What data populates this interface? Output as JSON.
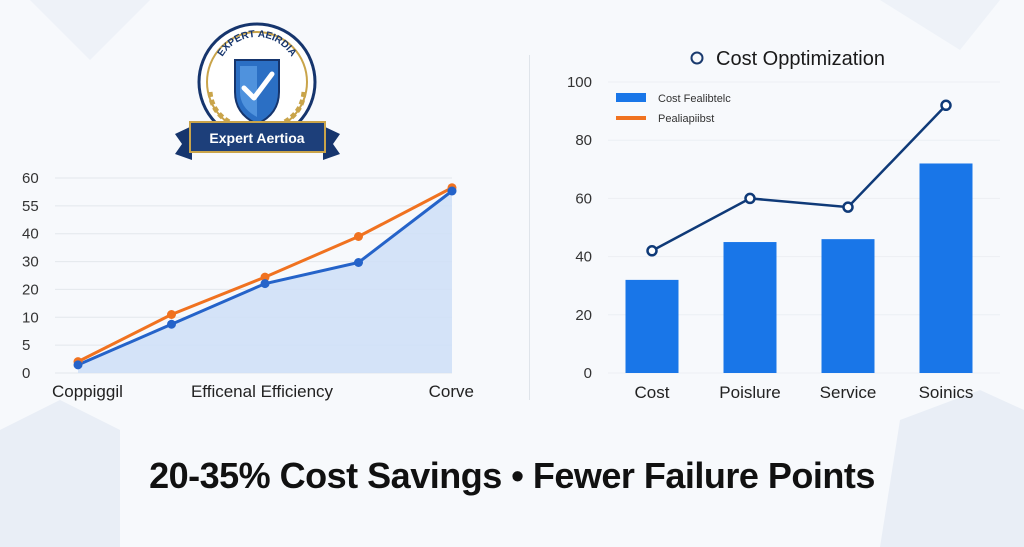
{
  "badge": {
    "arc_text": "EXPERT AEIRDIA",
    "ribbon_text": "Expert Aertioa"
  },
  "footer": {
    "text": "20-35% Cost Savings • Fewer Failure Points"
  },
  "colors": {
    "blue_line": "#2563c9",
    "orange_line": "#f07220",
    "bar": "#1976e8",
    "navy": "#0f3a78",
    "area": "#cfe0f7"
  },
  "chart_data": [
    {
      "type": "line",
      "title": "",
      "y_ticks": [
        "0",
        "5",
        "10",
        "20",
        "30",
        "40",
        "55",
        "60"
      ],
      "ylim": [
        0,
        60
      ],
      "x_labels": [
        "Coppiggil",
        "Efficenal Efficiency",
        "Corve"
      ],
      "series": [
        {
          "name": "orange",
          "x": [
            0,
            1,
            2,
            3,
            4
          ],
          "values": [
            3.5,
            18,
            29.5,
            42,
            57
          ]
        },
        {
          "name": "blue",
          "x": [
            0,
            1,
            2,
            3,
            4
          ],
          "values": [
            2.5,
            15,
            27.5,
            34,
            56
          ],
          "fill": true
        }
      ]
    },
    {
      "type": "bar",
      "title": "Cost Opptimization",
      "title_icon": "O",
      "categories": [
        "Cost",
        "Poislure",
        "Service",
        "Soinics"
      ],
      "ylim": [
        0,
        100
      ],
      "y_ticks": [
        0,
        20,
        40,
        60,
        80,
        100
      ],
      "series": [
        {
          "name": "Cost Fealibtelc",
          "kind": "bar",
          "values": [
            32,
            45,
            46,
            72
          ]
        },
        {
          "name": "Pealiapiibst",
          "kind": "line",
          "values": [
            42,
            60,
            57,
            92
          ]
        }
      ],
      "legend": "top-left"
    }
  ]
}
